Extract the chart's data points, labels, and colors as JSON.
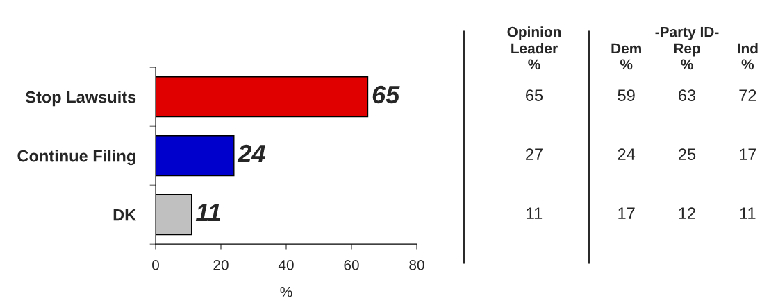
{
  "chart_data": [
    {
      "type": "bar",
      "orientation": "horizontal",
      "categories": [
        "Stop Lawsuits",
        "Continue Filing",
        "DK"
      ],
      "values": [
        65,
        24,
        11
      ],
      "colors": [
        "#e00000",
        "#0000cc",
        "#c0c0c0"
      ],
      "xlim": [
        0,
        80
      ],
      "xticks": [
        0,
        20,
        40,
        60,
        80
      ],
      "xlabel": "%",
      "data_labels": true,
      "grid": false
    },
    {
      "type": "heatmap",
      "categories": [
        "Opinion Leader"
      ],
      "y_categories": [
        null,
        null,
        null
      ],
      "color": "#ffffff",
      "cells": [
        [
          65
        ],
        [
          27
        ],
        [
          11
        ]
      ],
      "annotations": [
        "%"
      ],
      "data_labels": true
    },
    {
      "type": "heatmap",
      "subtitle": "-Party ID-",
      "categories": [
        "Dem",
        "Rep",
        "Ind"
      ],
      "y_categories": [
        null,
        null,
        null
      ],
      "color": "#ffffff",
      "cells": [
        [
          59,
          63,
          72
        ],
        [
          24,
          25,
          17
        ],
        [
          17,
          12,
          11
        ]
      ],
      "annotations": [
        "%",
        "%",
        "%"
      ],
      "data_labels": true
    }
  ]
}
